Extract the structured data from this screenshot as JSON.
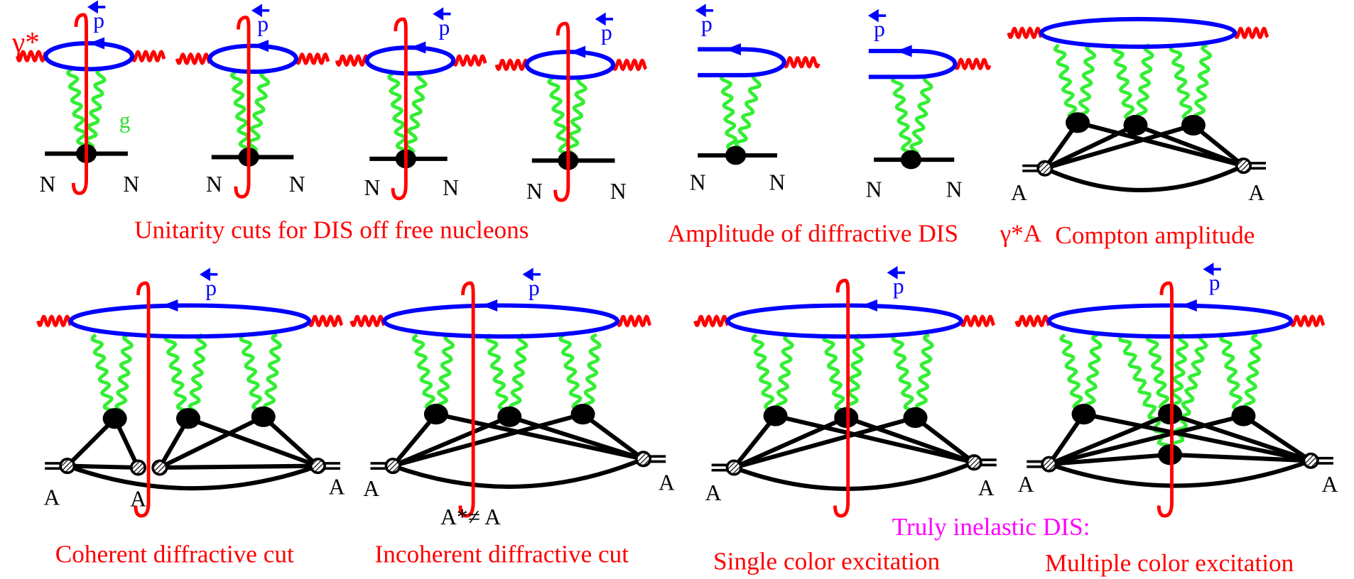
{
  "labels": {
    "photon": "γ*",
    "gluon": "g",
    "quark": "p",
    "nucleon": "N",
    "nucleus": "A",
    "excited_nucleus": "A*≠ A"
  },
  "captions": {
    "unitarity": "Unitarity cuts for DIS off free nucleons",
    "amplitude": "Amplitude of diffractive DIS",
    "compton_prefix": "γ*A",
    "compton": "Compton amplitude",
    "coherent": "Coherent diffractive cut",
    "incoherent": "Incoherent diffractive cut",
    "inelastic": "Truly  inelastic  DIS:",
    "single": "Single color excitation",
    "multiple": "Multiple color excitation"
  }
}
